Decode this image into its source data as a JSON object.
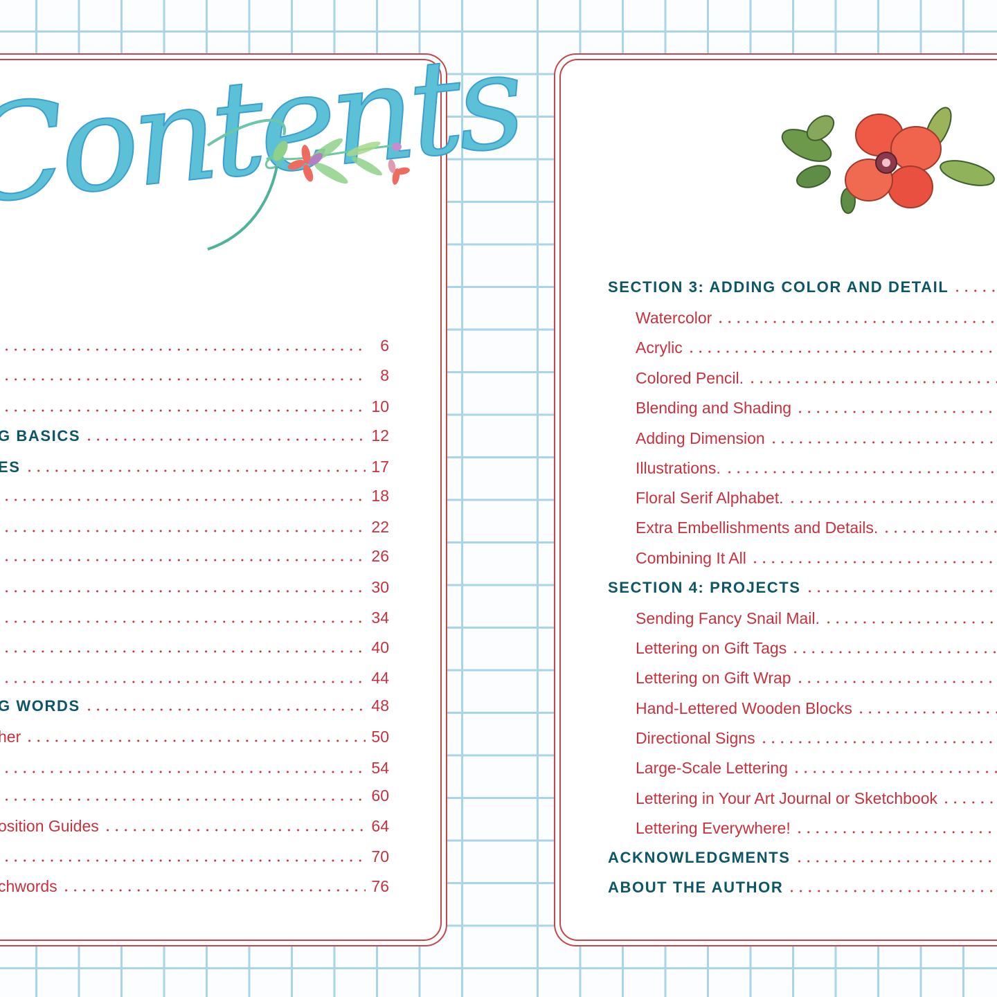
{
  "colors": {
    "grid": "#a9d5ea",
    "frame": "#c5464b",
    "entry": "#c6323d",
    "heading": "#0d5667",
    "lettering": "#5cc0d6"
  },
  "left_page": {
    "title": "Contents",
    "entries": [
      {
        "text": "",
        "page": "6",
        "type": "sub"
      },
      {
        "text": "",
        "page": "8",
        "type": "sub"
      },
      {
        "text": "",
        "page": "10",
        "type": "sub"
      },
      {
        "text": "G BASICS",
        "page": "12",
        "type": "heading"
      },
      {
        "text": "ES",
        "page": "17",
        "type": "heading"
      },
      {
        "text": "",
        "page": "18",
        "type": "sub"
      },
      {
        "text": "",
        "page": "22",
        "type": "sub"
      },
      {
        "text": "",
        "page": "26",
        "type": "sub"
      },
      {
        "text": "",
        "page": "30",
        "type": "sub"
      },
      {
        "text": "",
        "page": "34",
        "type": "sub"
      },
      {
        "text": "",
        "page": "40",
        "type": "sub"
      },
      {
        "text": "",
        "page": "44",
        "type": "sub"
      },
      {
        "text": "G WORDS",
        "page": "48",
        "type": "heading"
      },
      {
        "text": "her",
        "page": "50",
        "type": "sub"
      },
      {
        "text": "",
        "page": "54",
        "type": "sub"
      },
      {
        "text": "",
        "page": "60",
        "type": "sub"
      },
      {
        "text": "osition Guides",
        "page": "64",
        "type": "sub"
      },
      {
        "text": "",
        "page": "70",
        "type": "sub"
      },
      {
        "text": "chwords",
        "page": "76",
        "type": "sub"
      }
    ]
  },
  "right_page": {
    "entries": [
      {
        "text": "SECTION 3: ADDING COLOR AND DETAIL",
        "type": "heading"
      },
      {
        "text": "Watercolor",
        "type": "sub"
      },
      {
        "text": "Acrylic",
        "type": "sub"
      },
      {
        "text": "Colored Pencil.",
        "type": "sub"
      },
      {
        "text": "Blending and Shading",
        "type": "sub"
      },
      {
        "text": "Adding Dimension",
        "type": "sub"
      },
      {
        "text": "Illustrations.",
        "type": "sub"
      },
      {
        "text": "Floral Serif Alphabet.",
        "type": "sub"
      },
      {
        "text": "Extra Embellishments and Details.",
        "type": "sub"
      },
      {
        "text": "Combining It All",
        "type": "sub"
      },
      {
        "text": "SECTION 4: PROJECTS",
        "type": "heading"
      },
      {
        "text": "Sending Fancy Snail Mail.",
        "type": "sub"
      },
      {
        "text": "Lettering on Gift Tags",
        "type": "sub"
      },
      {
        "text": "Lettering on Gift Wrap",
        "type": "sub"
      },
      {
        "text": "Hand-Lettered Wooden Blocks",
        "type": "sub"
      },
      {
        "text": "Directional Signs",
        "type": "sub"
      },
      {
        "text": "Large-Scale Lettering",
        "type": "sub"
      },
      {
        "text": "Lettering in Your Art Journal or Sketchbook",
        "type": "sub"
      },
      {
        "text": "Lettering Everywhere!",
        "type": "sub"
      },
      {
        "text": "ACKNOWLEDGMENTS",
        "type": "heading"
      },
      {
        "text": "ABOUT THE AUTHOR",
        "type": "heading"
      }
    ]
  },
  "icons": {
    "left_art": "floral-sprig",
    "right_art": "red-flower-with-leaves"
  }
}
